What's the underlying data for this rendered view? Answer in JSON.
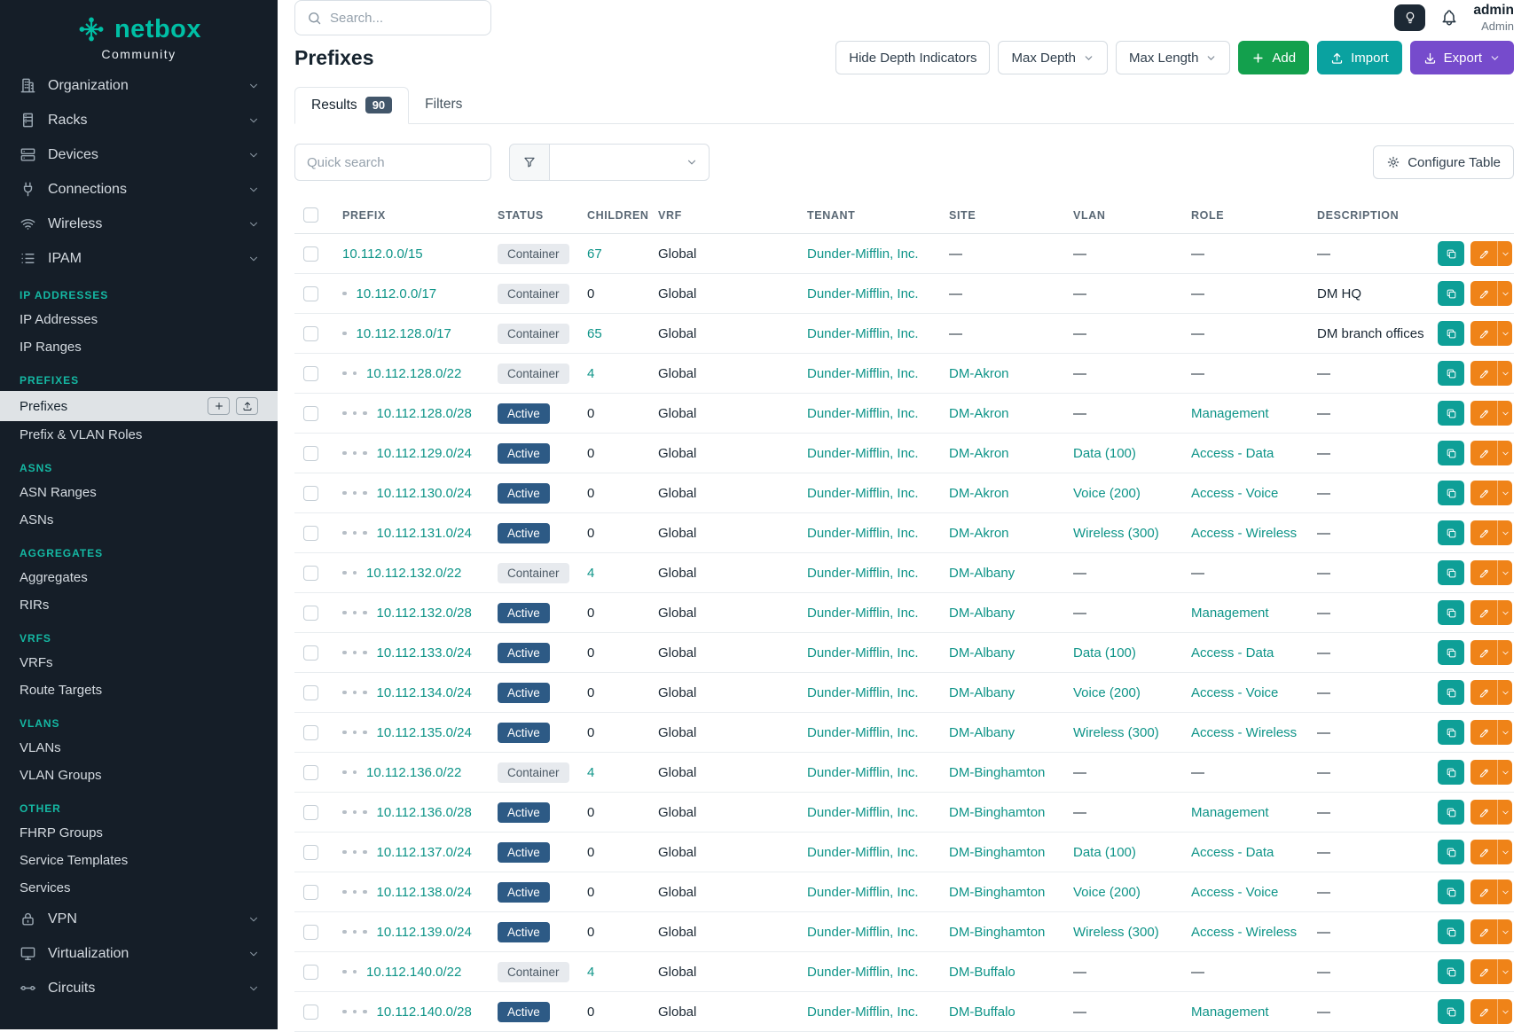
{
  "brand": {
    "name": "netbox",
    "subtitle": "Community"
  },
  "topbar": {
    "search_placeholder": "Search...",
    "user_name": "admin",
    "user_role": "Admin"
  },
  "page": {
    "title": "Prefixes"
  },
  "toolbar": {
    "hide_depth_label": "Hide Depth Indicators",
    "max_depth_label": "Max Depth",
    "max_length_label": "Max Length",
    "add_label": "Add",
    "import_label": "Import",
    "export_label": "Export"
  },
  "tabs": {
    "results_label": "Results",
    "results_count": "90",
    "filters_label": "Filters"
  },
  "controls": {
    "quick_search_placeholder": "Quick search",
    "configure_label": "Configure Table"
  },
  "colors": {
    "brand_teal": "#00bfa5",
    "link_teal": "#0e9488",
    "sidebar_bg": "#151e28",
    "add_green": "#13a04d",
    "import_teal": "#0aa2a0",
    "export_purple": "#764bcc",
    "edit_orange": "#ef8318",
    "active_badge_blue": "#2d5a85",
    "container_badge_bg": "#e7eaee"
  },
  "sidebar": {
    "items": [
      {
        "type": "link",
        "label": "Organization",
        "icon": "building"
      },
      {
        "type": "link",
        "label": "Racks",
        "icon": "rack"
      },
      {
        "type": "link",
        "label": "Devices",
        "icon": "devices"
      },
      {
        "type": "link",
        "label": "Connections",
        "icon": "connections"
      },
      {
        "type": "link",
        "label": "Wireless",
        "icon": "wifi"
      },
      {
        "type": "link",
        "label": "IPAM",
        "icon": "ipam",
        "expanded": true
      },
      {
        "type": "section",
        "label": "IP ADDRESSES"
      },
      {
        "type": "sub",
        "label": "IP Addresses"
      },
      {
        "type": "sub",
        "label": "IP Ranges"
      },
      {
        "type": "section",
        "label": "PREFIXES"
      },
      {
        "type": "sub",
        "label": "Prefixes",
        "active": true
      },
      {
        "type": "sub",
        "label": "Prefix & VLAN Roles"
      },
      {
        "type": "section",
        "label": "ASNS"
      },
      {
        "type": "sub",
        "label": "ASN Ranges"
      },
      {
        "type": "sub",
        "label": "ASNs"
      },
      {
        "type": "section",
        "label": "AGGREGATES"
      },
      {
        "type": "sub",
        "label": "Aggregates"
      },
      {
        "type": "sub",
        "label": "RIRs"
      },
      {
        "type": "section",
        "label": "VRFS"
      },
      {
        "type": "sub",
        "label": "VRFs"
      },
      {
        "type": "sub",
        "label": "Route Targets"
      },
      {
        "type": "section",
        "label": "VLANS"
      },
      {
        "type": "sub",
        "label": "VLANs"
      },
      {
        "type": "sub",
        "label": "VLAN Groups"
      },
      {
        "type": "section",
        "label": "OTHER"
      },
      {
        "type": "sub",
        "label": "FHRP Groups"
      },
      {
        "type": "sub",
        "label": "Service Templates"
      },
      {
        "type": "sub",
        "label": "Services"
      },
      {
        "type": "link",
        "label": "VPN",
        "icon": "vpn"
      },
      {
        "type": "link",
        "label": "Virtualization",
        "icon": "virtualization"
      },
      {
        "type": "link",
        "label": "Circuits",
        "icon": "circuits"
      }
    ]
  },
  "table": {
    "columns": [
      "PREFIX",
      "STATUS",
      "CHILDREN",
      "VRF",
      "TENANT",
      "SITE",
      "VLAN",
      "ROLE",
      "DESCRIPTION"
    ],
    "rows": [
      {
        "prefix": "10.112.0.0/15",
        "depth": 0,
        "status": "Container",
        "children": "67",
        "vrf": "Global",
        "tenant": "Dunder-Mifflin, Inc.",
        "site": "—",
        "vlan": "—",
        "role": "—",
        "description": "—"
      },
      {
        "prefix": "10.112.0.0/17",
        "depth": 1,
        "status": "Container",
        "children": "0",
        "vrf": "Global",
        "tenant": "Dunder-Mifflin, Inc.",
        "site": "—",
        "vlan": "—",
        "role": "—",
        "description": "DM HQ"
      },
      {
        "prefix": "10.112.128.0/17",
        "depth": 1,
        "status": "Container",
        "children": "65",
        "vrf": "Global",
        "tenant": "Dunder-Mifflin, Inc.",
        "site": "—",
        "vlan": "—",
        "role": "—",
        "description": "DM branch offices"
      },
      {
        "prefix": "10.112.128.0/22",
        "depth": 2,
        "status": "Container",
        "children": "4",
        "vrf": "Global",
        "tenant": "Dunder-Mifflin, Inc.",
        "site": "DM-Akron",
        "vlan": "—",
        "role": "—",
        "description": "—"
      },
      {
        "prefix": "10.112.128.0/28",
        "depth": 3,
        "status": "Active",
        "children": "0",
        "vrf": "Global",
        "tenant": "Dunder-Mifflin, Inc.",
        "site": "DM-Akron",
        "vlan": "—",
        "role": "Management",
        "description": "—"
      },
      {
        "prefix": "10.112.129.0/24",
        "depth": 3,
        "status": "Active",
        "children": "0",
        "vrf": "Global",
        "tenant": "Dunder-Mifflin, Inc.",
        "site": "DM-Akron",
        "vlan": "Data (100)",
        "role": "Access - Data",
        "description": "—"
      },
      {
        "prefix": "10.112.130.0/24",
        "depth": 3,
        "status": "Active",
        "children": "0",
        "vrf": "Global",
        "tenant": "Dunder-Mifflin, Inc.",
        "site": "DM-Akron",
        "vlan": "Voice (200)",
        "role": "Access - Voice",
        "description": "—"
      },
      {
        "prefix": "10.112.131.0/24",
        "depth": 3,
        "status": "Active",
        "children": "0",
        "vrf": "Global",
        "tenant": "Dunder-Mifflin, Inc.",
        "site": "DM-Akron",
        "vlan": "Wireless (300)",
        "role": "Access - Wireless",
        "description": "—"
      },
      {
        "prefix": "10.112.132.0/22",
        "depth": 2,
        "status": "Container",
        "children": "4",
        "vrf": "Global",
        "tenant": "Dunder-Mifflin, Inc.",
        "site": "DM-Albany",
        "vlan": "—",
        "role": "—",
        "description": "—"
      },
      {
        "prefix": "10.112.132.0/28",
        "depth": 3,
        "status": "Active",
        "children": "0",
        "vrf": "Global",
        "tenant": "Dunder-Mifflin, Inc.",
        "site": "DM-Albany",
        "vlan": "—",
        "role": "Management",
        "description": "—"
      },
      {
        "prefix": "10.112.133.0/24",
        "depth": 3,
        "status": "Active",
        "children": "0",
        "vrf": "Global",
        "tenant": "Dunder-Mifflin, Inc.",
        "site": "DM-Albany",
        "vlan": "Data (100)",
        "role": "Access - Data",
        "description": "—"
      },
      {
        "prefix": "10.112.134.0/24",
        "depth": 3,
        "status": "Active",
        "children": "0",
        "vrf": "Global",
        "tenant": "Dunder-Mifflin, Inc.",
        "site": "DM-Albany",
        "vlan": "Voice (200)",
        "role": "Access - Voice",
        "description": "—"
      },
      {
        "prefix": "10.112.135.0/24",
        "depth": 3,
        "status": "Active",
        "children": "0",
        "vrf": "Global",
        "tenant": "Dunder-Mifflin, Inc.",
        "site": "DM-Albany",
        "vlan": "Wireless (300)",
        "role": "Access - Wireless",
        "description": "—"
      },
      {
        "prefix": "10.112.136.0/22",
        "depth": 2,
        "status": "Container",
        "children": "4",
        "vrf": "Global",
        "tenant": "Dunder-Mifflin, Inc.",
        "site": "DM-Binghamton",
        "vlan": "—",
        "role": "—",
        "description": "—"
      },
      {
        "prefix": "10.112.136.0/28",
        "depth": 3,
        "status": "Active",
        "children": "0",
        "vrf": "Global",
        "tenant": "Dunder-Mifflin, Inc.",
        "site": "DM-Binghamton",
        "vlan": "—",
        "role": "Management",
        "description": "—"
      },
      {
        "prefix": "10.112.137.0/24",
        "depth": 3,
        "status": "Active",
        "children": "0",
        "vrf": "Global",
        "tenant": "Dunder-Mifflin, Inc.",
        "site": "DM-Binghamton",
        "vlan": "Data (100)",
        "role": "Access - Data",
        "description": "—"
      },
      {
        "prefix": "10.112.138.0/24",
        "depth": 3,
        "status": "Active",
        "children": "0",
        "vrf": "Global",
        "tenant": "Dunder-Mifflin, Inc.",
        "site": "DM-Binghamton",
        "vlan": "Voice (200)",
        "role": "Access - Voice",
        "description": "—"
      },
      {
        "prefix": "10.112.139.0/24",
        "depth": 3,
        "status": "Active",
        "children": "0",
        "vrf": "Global",
        "tenant": "Dunder-Mifflin, Inc.",
        "site": "DM-Binghamton",
        "vlan": "Wireless (300)",
        "role": "Access - Wireless",
        "description": "—"
      },
      {
        "prefix": "10.112.140.0/22",
        "depth": 2,
        "status": "Container",
        "children": "4",
        "vrf": "Global",
        "tenant": "Dunder-Mifflin, Inc.",
        "site": "DM-Buffalo",
        "vlan": "—",
        "role": "—",
        "description": "—"
      },
      {
        "prefix": "10.112.140.0/28",
        "depth": 3,
        "status": "Active",
        "children": "0",
        "vrf": "Global",
        "tenant": "Dunder-Mifflin, Inc.",
        "site": "DM-Buffalo",
        "vlan": "—",
        "role": "Management",
        "description": "—"
      }
    ]
  }
}
